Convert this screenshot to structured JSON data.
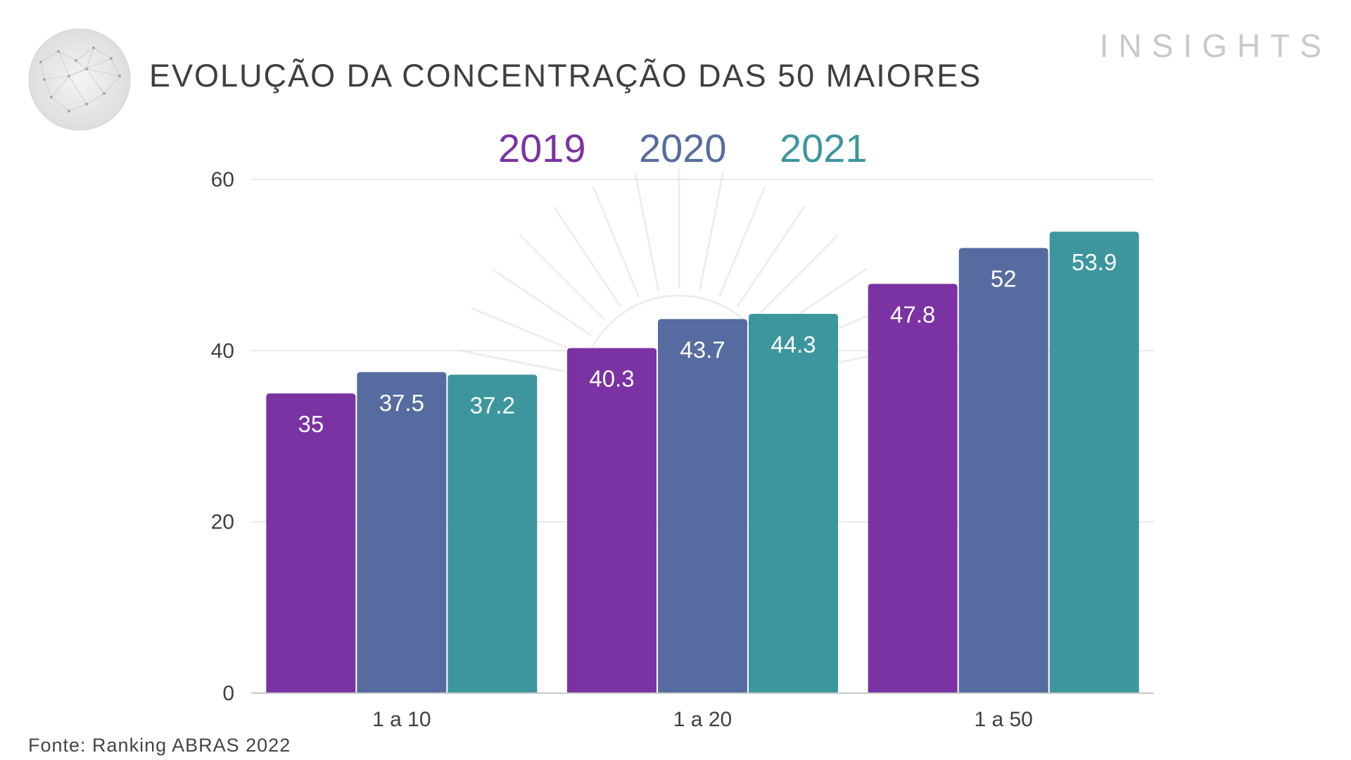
{
  "header": {
    "title": "EVOLUÇÃO DA CONCENTRAÇÃO DAS 50 MAIORES",
    "brand": "INSIGHTS"
  },
  "footer": {
    "source": "Fonte: Ranking ABRAS 2022"
  },
  "chart_data": {
    "type": "bar",
    "title": "EVOLUÇÃO DA CONCENTRAÇÃO DAS 50 MAIORES",
    "categories": [
      "1 a 10",
      "1 a 20",
      "1 a 50"
    ],
    "series": [
      {
        "name": "2019",
        "values": [
          35,
          40.3,
          47.8
        ],
        "color": "#7b32a3"
      },
      {
        "name": "2020",
        "values": [
          37.5,
          43.7,
          52
        ],
        "color": "#566ca0"
      },
      {
        "name": "2021",
        "values": [
          37.2,
          44.3,
          53.9
        ],
        "color": "#3d969e"
      }
    ],
    "ylim": [
      0,
      60
    ],
    "yticks": [
      0,
      20,
      40,
      60
    ],
    "grid": true,
    "legend": "top-center",
    "data_labels": true
  }
}
